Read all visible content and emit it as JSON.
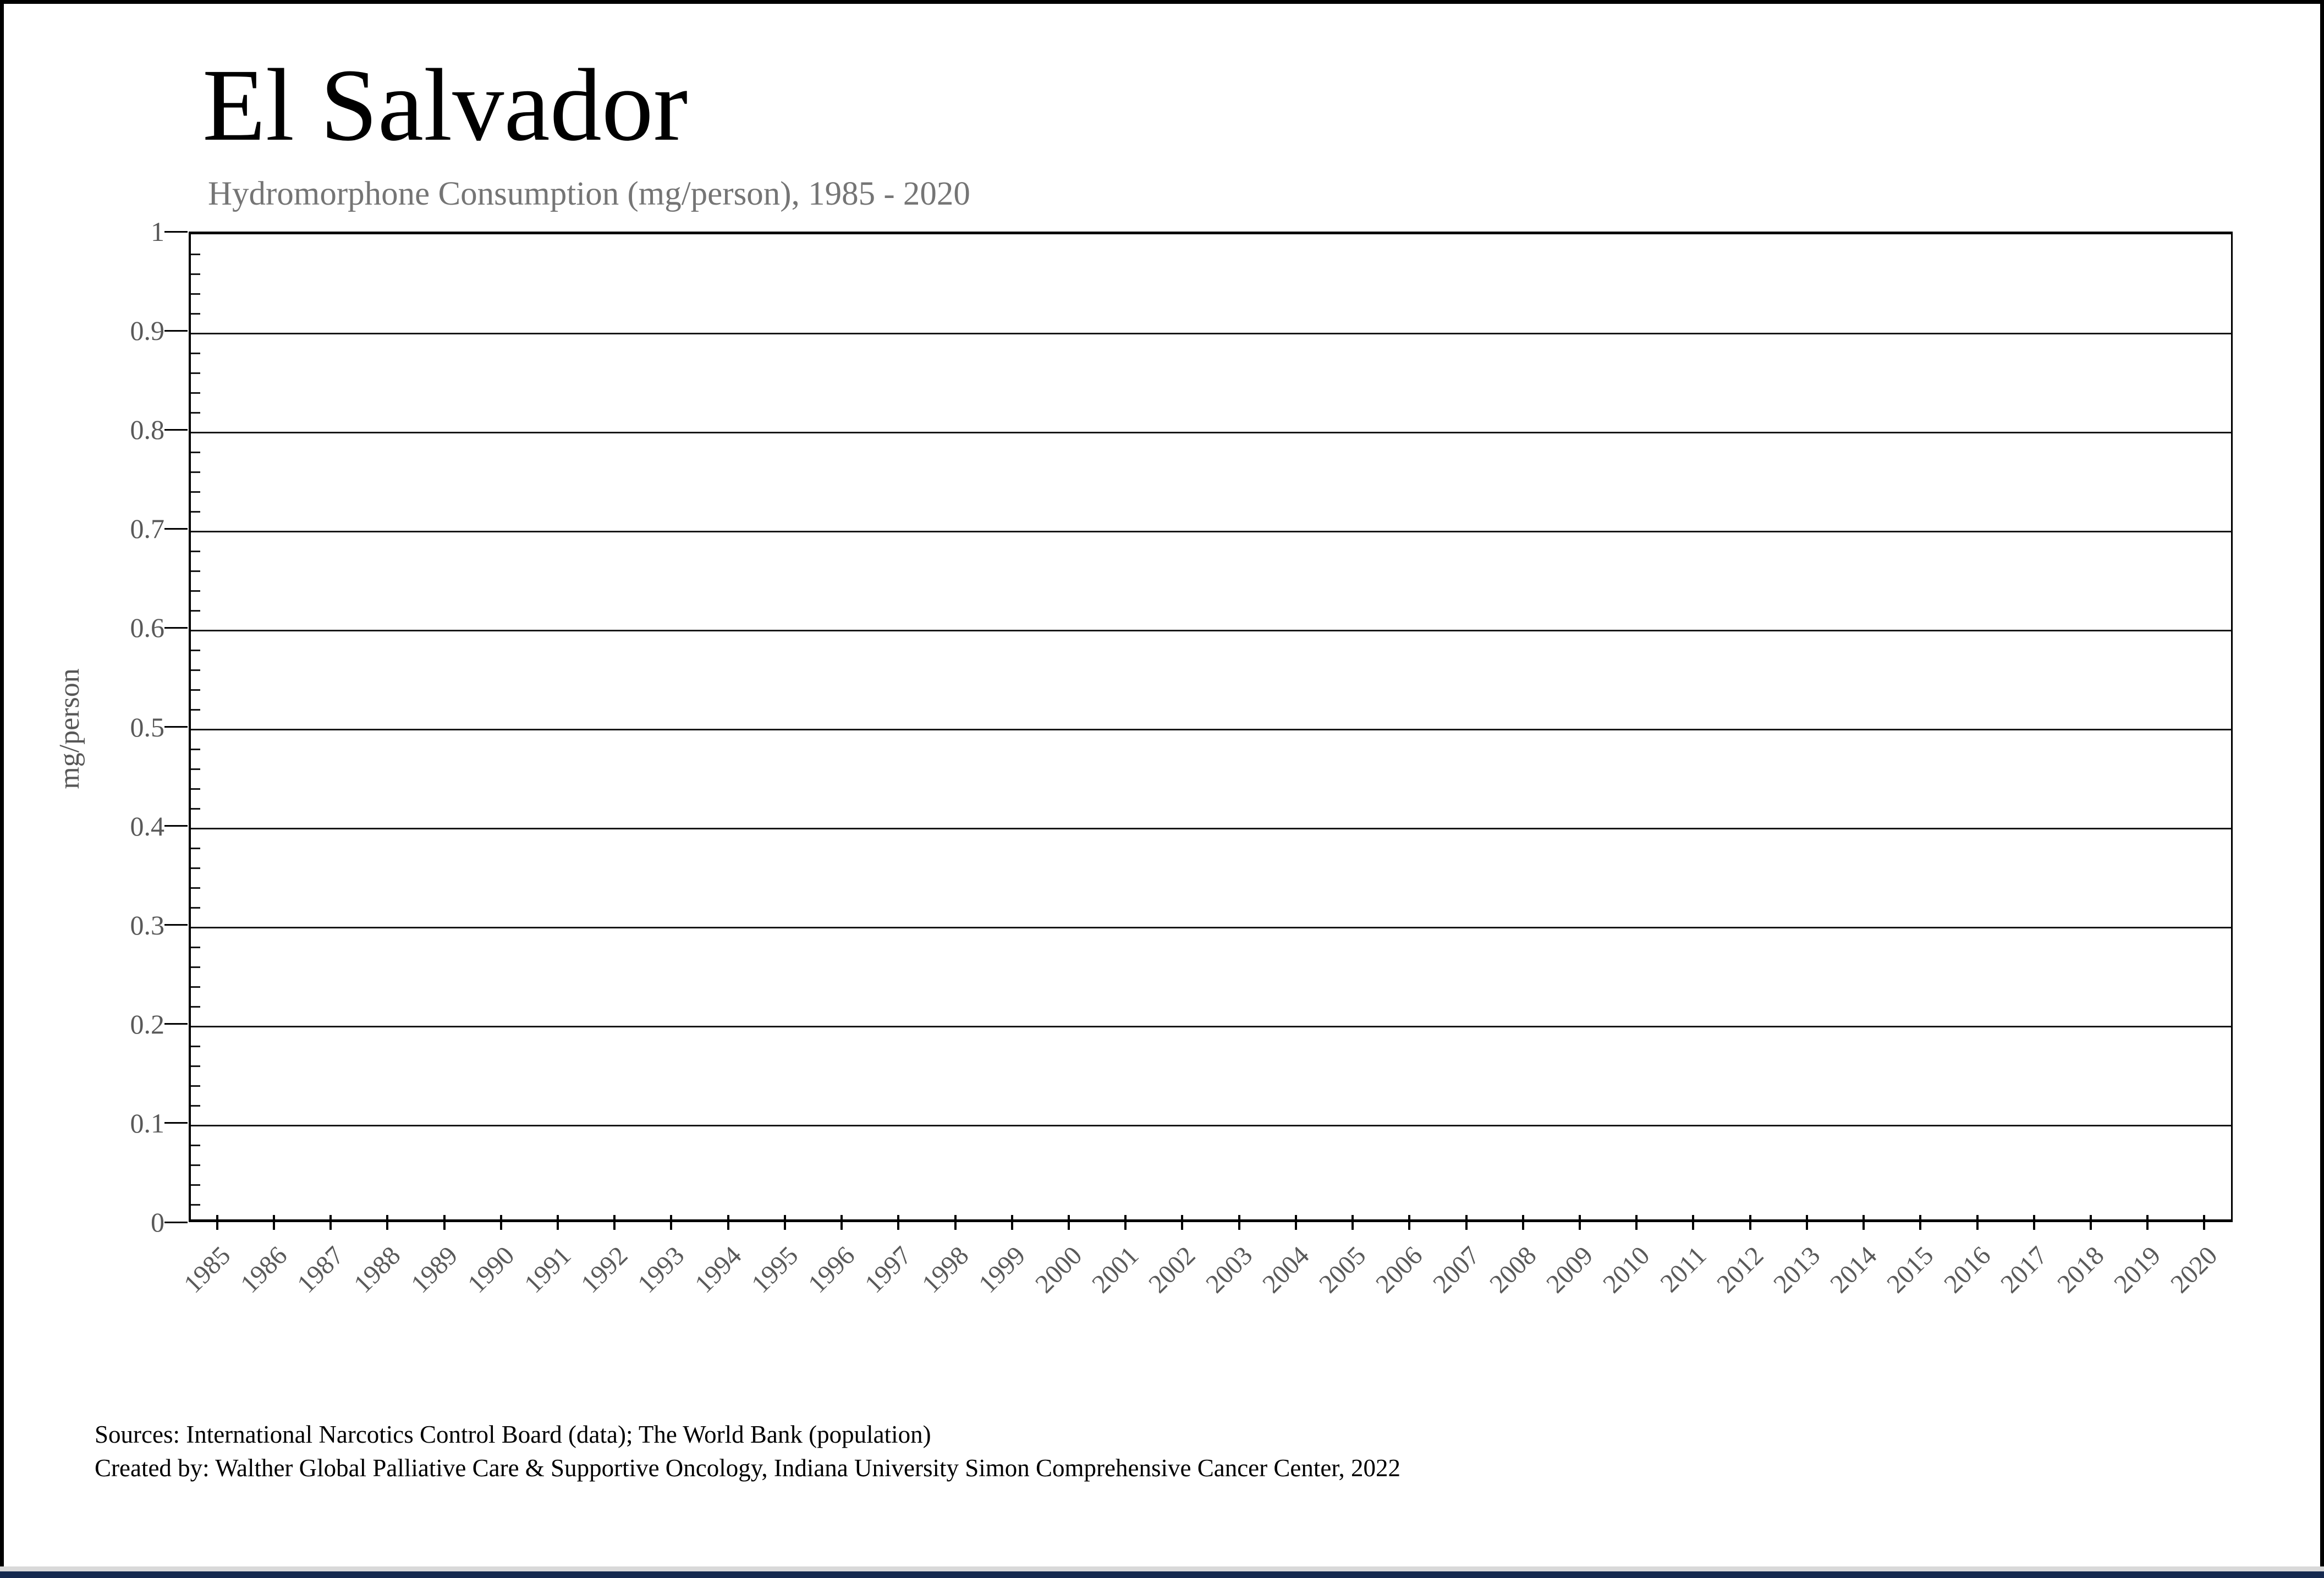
{
  "page": {
    "title": "El Salvador",
    "subtitle": "Hydromorphone Consumption (mg/person), 1985 - 2020"
  },
  "chart_data": {
    "type": "bar",
    "title": "El Salvador",
    "subtitle": "Hydromorphone Consumption (mg/person), 1985 - 2020",
    "categories": [
      1985,
      1986,
      1987,
      1988,
      1989,
      1990,
      1991,
      1992,
      1993,
      1994,
      1995,
      1996,
      1997,
      1998,
      1999,
      2000,
      2001,
      2002,
      2003,
      2004,
      2005,
      2006,
      2007,
      2008,
      2009,
      2010,
      2011,
      2012,
      2013,
      2014,
      2015,
      2016,
      2017,
      2018,
      2019,
      2020
    ],
    "values": [
      0,
      0,
      0,
      0,
      0,
      0,
      0,
      0,
      0,
      0,
      0,
      0,
      0,
      0,
      0,
      0,
      0,
      0,
      0,
      0,
      0,
      0,
      0,
      0,
      0,
      0,
      0,
      0,
      0,
      0,
      0,
      0,
      0,
      0,
      0,
      0
    ],
    "xlabel": "",
    "ylabel": "mg/person",
    "ylim": [
      0,
      1
    ],
    "ytick_labels": [
      "1",
      "0.9",
      "0.8",
      "0.7",
      "0.6",
      "0.5",
      "0.4",
      "0.3",
      "0.2",
      "0.1",
      "0"
    ],
    "y_minor_step": 0.02,
    "grid": "horizontal-major",
    "legend_position": "none"
  },
  "footer": {
    "line1": "Sources: International Narcotics Control Board (data); The World Bank (population)",
    "line2": "Created by: Walther Global Palliative Care & Supportive Oncology, Indiana University Simon Comprehensive Cancer Center, 2022"
  },
  "colors": {
    "subtitle_gray": "#757575",
    "axis_label_gray": "#595959",
    "gridline": "#181818",
    "footer_strip_gray": "#d9d9d9",
    "footer_bar_navy": "#15294f"
  }
}
